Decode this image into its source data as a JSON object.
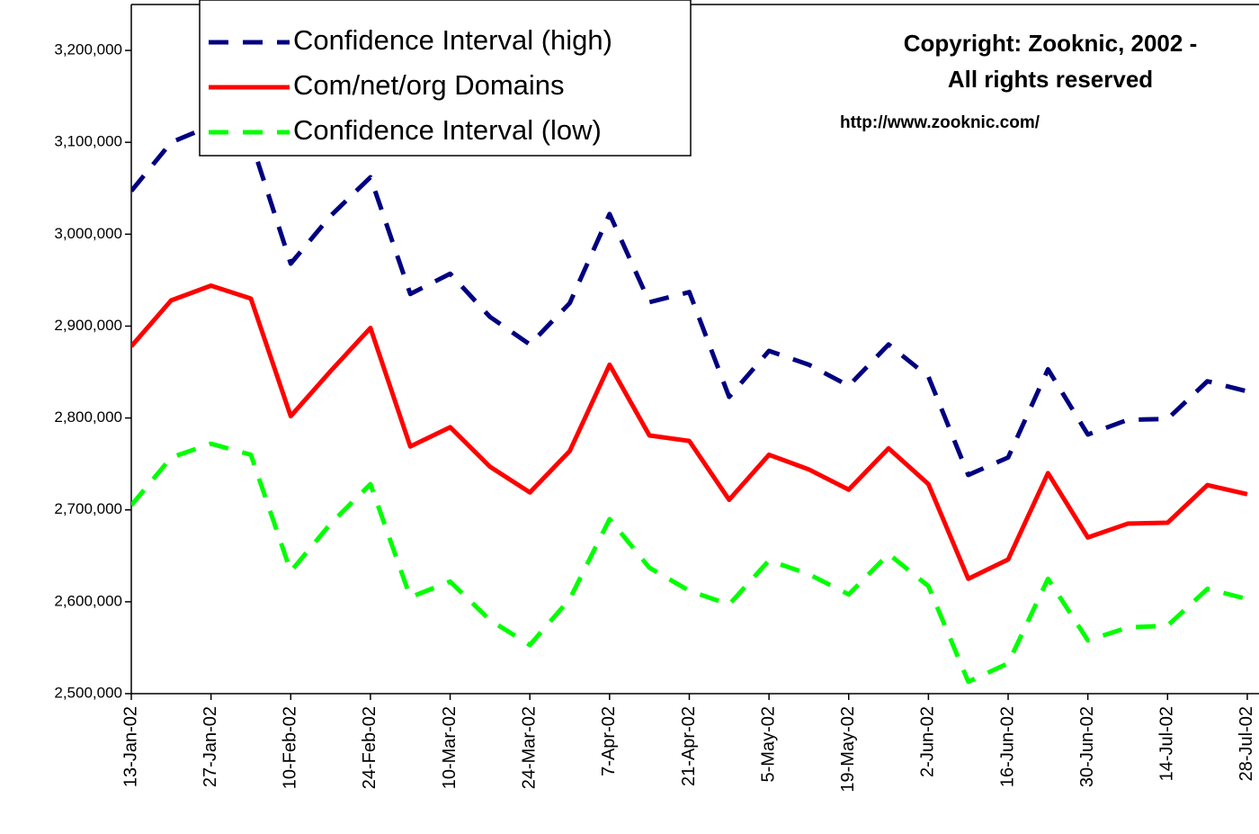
{
  "chart_data": {
    "type": "line",
    "annotations": [
      "Copyright: Zooknic, 2002 -",
      "All rights reserved",
      "http://www.zooknic.com/"
    ],
    "categories": [
      "13-Jan-02",
      null,
      "27-Jan-02",
      null,
      "10-Feb-02",
      null,
      "24-Feb-02",
      null,
      "10-Mar-02",
      null,
      "24-Mar-02",
      null,
      "7-Apr-02",
      null,
      "21-Apr-02",
      null,
      "5-May-02",
      null,
      "19-May-02",
      null,
      "2-Jun-02",
      null,
      "16-Jun-02",
      null,
      "30-Jun-02",
      null,
      "14-Jul-02",
      null,
      "28-Jul-02"
    ],
    "series": [
      {
        "name": "Confidence Interval (high)",
        "color": "#000080",
        "dashed": true,
        "values": [
          3047000,
          3100000,
          3118000,
          3102000,
          2968000,
          3020000,
          3062000,
          2935000,
          2957000,
          2910000,
          2880000,
          2925000,
          3022000,
          2926000,
          2937000,
          2823000,
          2873000,
          2858000,
          2835000,
          2880000,
          2845000,
          2738000,
          2757000,
          2853000,
          2782000,
          2798000,
          2799000,
          2840000,
          2829000
        ]
      },
      {
        "name": "Com/net/org Domains",
        "color": "#ff0000",
        "dashed": false,
        "values": [
          2878000,
          2928000,
          2944000,
          2930000,
          2802000,
          2851000,
          2898000,
          2769000,
          2790000,
          2747000,
          2719000,
          2764000,
          2858000,
          2781000,
          2775000,
          2711000,
          2760000,
          2744000,
          2722000,
          2767000,
          2728000,
          2625000,
          2646000,
          2740000,
          2670000,
          2685000,
          2686000,
          2727000,
          2717000
        ]
      },
      {
        "name": "Confidence Interval (low)",
        "color": "#00ff00",
        "dashed": true,
        "values": [
          2705000,
          2757000,
          2772000,
          2760000,
          2633000,
          2685000,
          2728000,
          2605000,
          2622000,
          2580000,
          2553000,
          2603000,
          2690000,
          2637000,
          2612000,
          2597000,
          2645000,
          2630000,
          2608000,
          2652000,
          2617000,
          2513000,
          2533000,
          2625000,
          2558000,
          2572000,
          2574000,
          2614000,
          2603000
        ]
      }
    ],
    "ylim": [
      2500000,
      3250000
    ],
    "yticks": [
      {
        "value": 2500000,
        "label": "2,500,000"
      },
      {
        "value": 2600000,
        "label": "2,600,000"
      },
      {
        "value": 2700000,
        "label": "2,700,000"
      },
      {
        "value": 2800000,
        "label": "2,800,000"
      },
      {
        "value": 2900000,
        "label": "2,900,000"
      },
      {
        "value": 3000000,
        "label": "3,000,000"
      },
      {
        "value": 3100000,
        "label": "3,100,000"
      },
      {
        "value": 3200000,
        "label": "3,200,000"
      }
    ],
    "grid": false,
    "legend": "top-left"
  }
}
